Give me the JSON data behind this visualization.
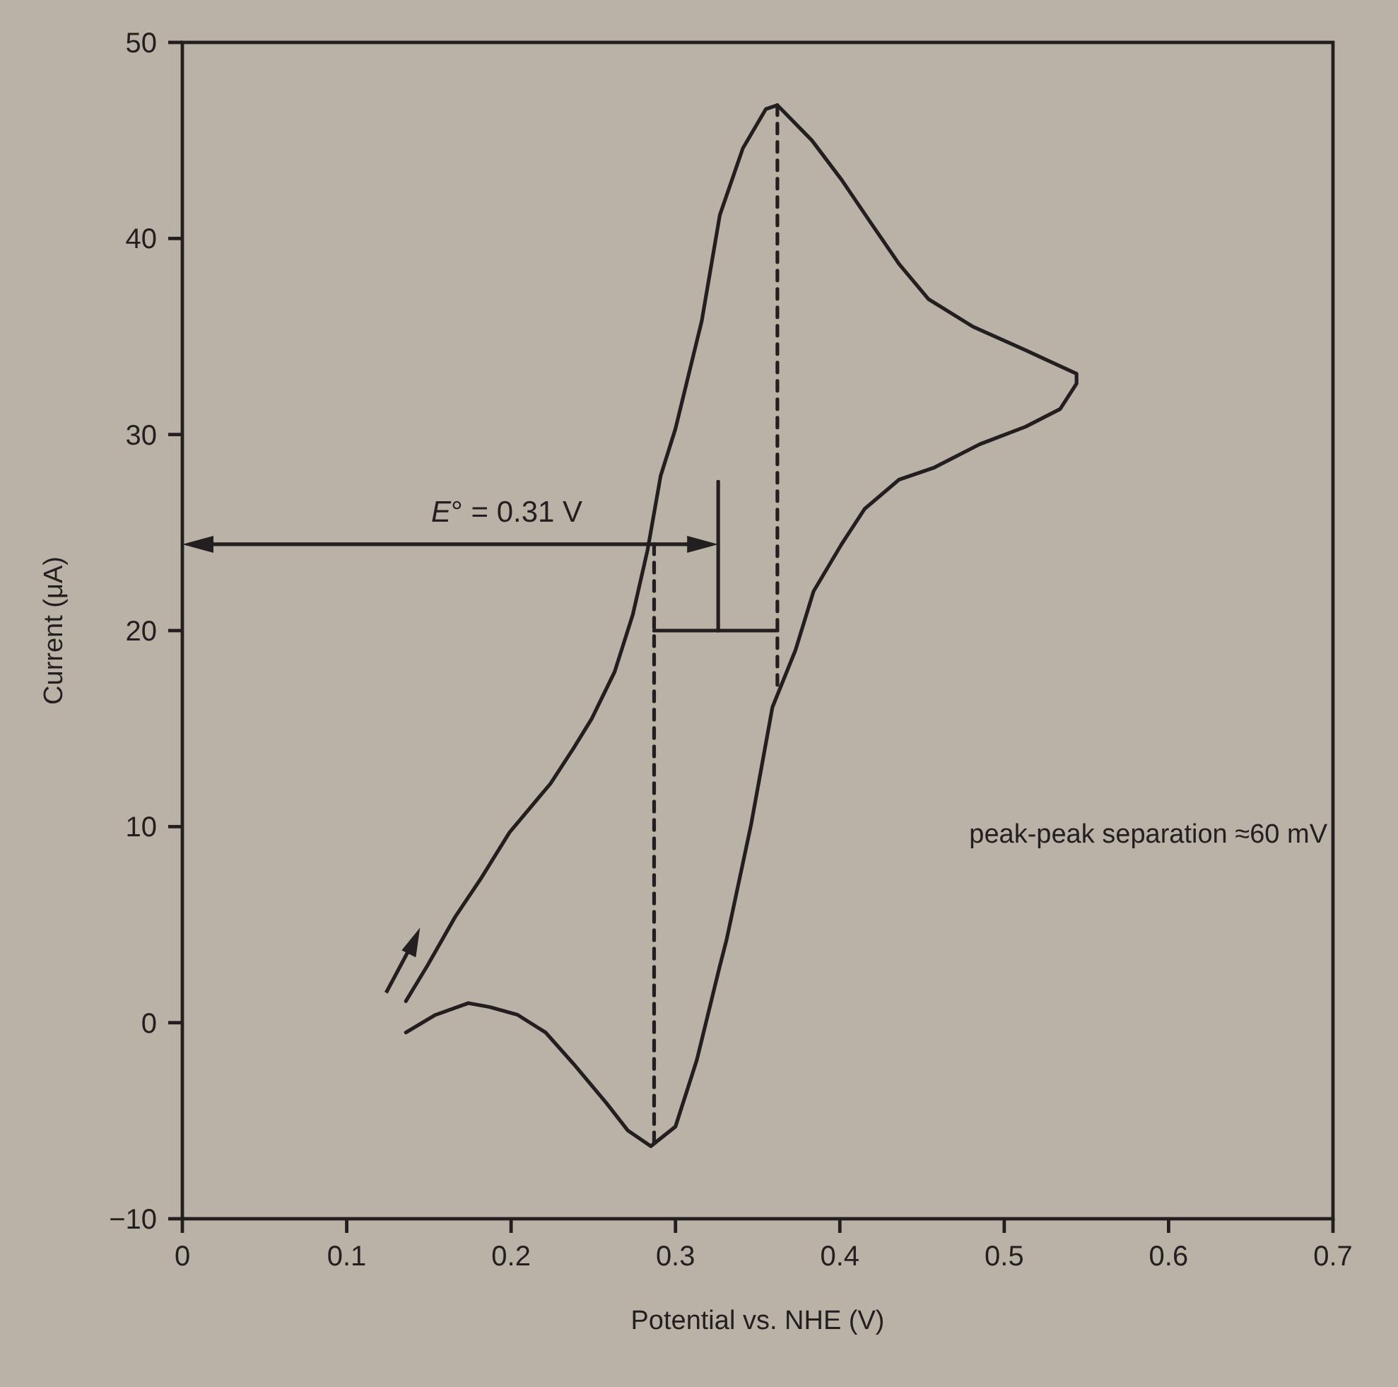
{
  "chart_data": {
    "type": "line",
    "xlabel": "Potential vs. NHE (V)",
    "ylabel": "Current (μA)",
    "xlim": [
      0,
      0.7
    ],
    "ylim": [
      -10,
      50
    ],
    "xticks": [
      0,
      0.1,
      0.2,
      0.3,
      0.4,
      0.5,
      0.6,
      0.7
    ],
    "yticks": [
      -10,
      0,
      10,
      20,
      30,
      40,
      50
    ],
    "marker": "none",
    "line_style": "solid",
    "grid": false,
    "series": [
      {
        "color": "#231f20",
        "x": [
          0.136,
          0.149,
          0.166,
          0.182,
          0.199,
          0.224,
          0.238,
          0.249,
          0.263,
          0.274,
          0.283,
          0.291,
          0.3,
          0.316,
          0.327,
          0.341,
          0.355,
          0.362,
          0.383,
          0.401,
          0.418,
          0.436,
          0.454,
          0.481,
          0.513,
          0.544,
          0.544,
          0.534,
          0.513,
          0.485,
          0.457,
          0.436,
          0.415,
          0.401,
          0.384,
          0.373,
          0.359,
          0.346,
          0.331,
          0.327,
          0.313,
          0.3,
          0.285,
          0.271,
          0.258,
          0.238,
          0.221,
          0.204,
          0.187,
          0.174,
          0.154,
          0.136
        ],
        "values": [
          1.1,
          2.9,
          5.4,
          7.4,
          9.7,
          12.2,
          14.0,
          15.5,
          17.9,
          20.8,
          24.1,
          27.9,
          30.3,
          35.8,
          41.2,
          44.6,
          46.6,
          46.8,
          45.0,
          43.0,
          40.9,
          38.7,
          36.9,
          35.5,
          34.3,
          33.1,
          32.6,
          31.3,
          30.4,
          29.5,
          28.3,
          27.7,
          26.2,
          24.4,
          22.0,
          19.0,
          16.1,
          10.1,
          4.2,
          2.9,
          -1.9,
          -5.3,
          -6.3,
          -5.5,
          -4.1,
          -2.1,
          -0.5,
          0.4,
          0.8,
          1.0,
          0.4,
          -0.5
        ]
      },
      {
        "color": "#231f20",
        "line_style": "dashed",
        "x": [
          0.287,
          0.287
        ],
        "values": [
          24.4,
          -6.3
        ]
      },
      {
        "color": "#231f20",
        "line_style": "dashed",
        "x": [
          0.362,
          0.362
        ],
        "values": [
          46.8,
          17.0
        ]
      },
      {
        "color": "#231f20",
        "x": [
          0.287,
          0.362
        ],
        "values": [
          20,
          20
        ]
      },
      {
        "color": "#231f20",
        "x": [
          0.326,
          0.326
        ],
        "values": [
          20,
          27.6
        ]
      }
    ],
    "annotations": [
      "E° = 0.31 V",
      "peak-peak separation ≈60 mV"
    ]
  }
}
